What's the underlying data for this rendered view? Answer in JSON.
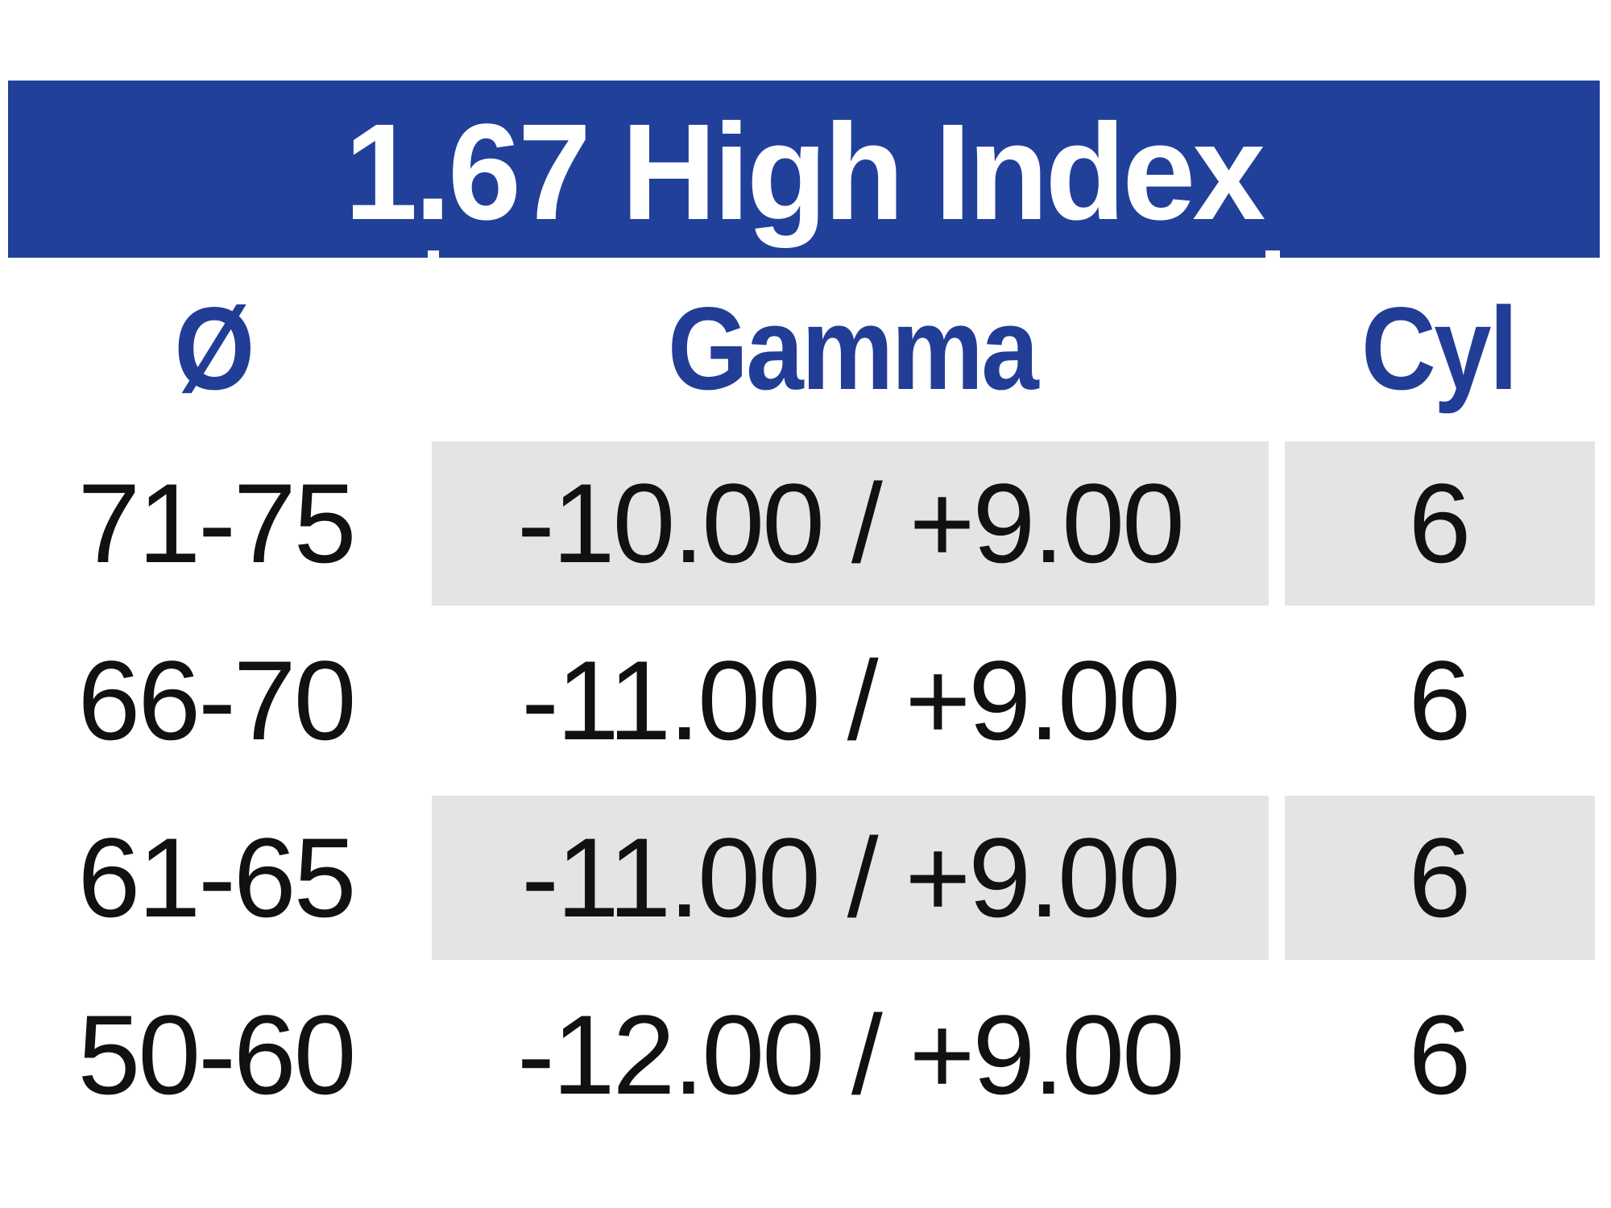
{
  "table": {
    "title": "1.67 High Index",
    "columns": [
      {
        "id": "diameter",
        "label": "Ø"
      },
      {
        "id": "gamma",
        "label": "Gamma"
      },
      {
        "id": "cyl",
        "label": "Cyl"
      }
    ],
    "rows": [
      {
        "diameter": "71-75",
        "gamma": "-10.00 / +9.00",
        "cyl": "6",
        "shaded": true
      },
      {
        "diameter": "66-70",
        "gamma": "-11.00 / +9.00",
        "cyl": "6",
        "shaded": false
      },
      {
        "diameter": "61-65",
        "gamma": "-11.00 / +9.00",
        "cyl": "6",
        "shaded": true
      },
      {
        "diameter": "50-60",
        "gamma": "-12.00 / +9.00",
        "cyl": "6",
        "shaded": false
      }
    ],
    "colors": {
      "header_bar": "#21409a",
      "title_text": "#ffffff",
      "column_header_text": "#223d96",
      "shaded_cell": "#e4e4e6",
      "data_text": "#111111",
      "background": "#ffffff"
    }
  }
}
